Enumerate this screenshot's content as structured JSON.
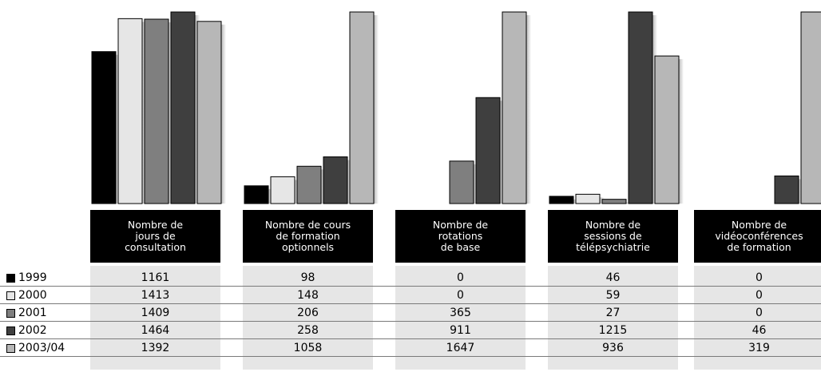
{
  "chart_data": {
    "type": "bar",
    "categories": [
      "Nombre de\njours de\nconsultation",
      "Nombre de cours\nde formation\noptionnels",
      "Nombre de\nrotations\nde base",
      "Nombre de\nsessions de\ntélépsychiatrie",
      "Nombre de\nvidéoconférences\nde formation"
    ],
    "series": [
      {
        "name": "1999",
        "color": "#000000",
        "values": [
          1161,
          98,
          0,
          46,
          0
        ]
      },
      {
        "name": "2000",
        "color": "#e6e6e6",
        "values": [
          1413,
          148,
          0,
          59,
          0
        ]
      },
      {
        "name": "2001",
        "color": "#7f7f7f",
        "values": [
          1409,
          206,
          365,
          27,
          0
        ]
      },
      {
        "name": "2002",
        "color": "#3f3f3f",
        "values": [
          1464,
          258,
          911,
          1215,
          46
        ]
      },
      {
        "name": "2003/04",
        "color": "#b7b7b7",
        "values": [
          1392,
          1058,
          1647,
          936,
          319
        ]
      }
    ],
    "group_max": [
      1464,
      1058,
      1647,
      1215,
      319
    ],
    "scale": "each category group scaled independently",
    "legend": "left, as row labels of the data table",
    "grid": false
  }
}
